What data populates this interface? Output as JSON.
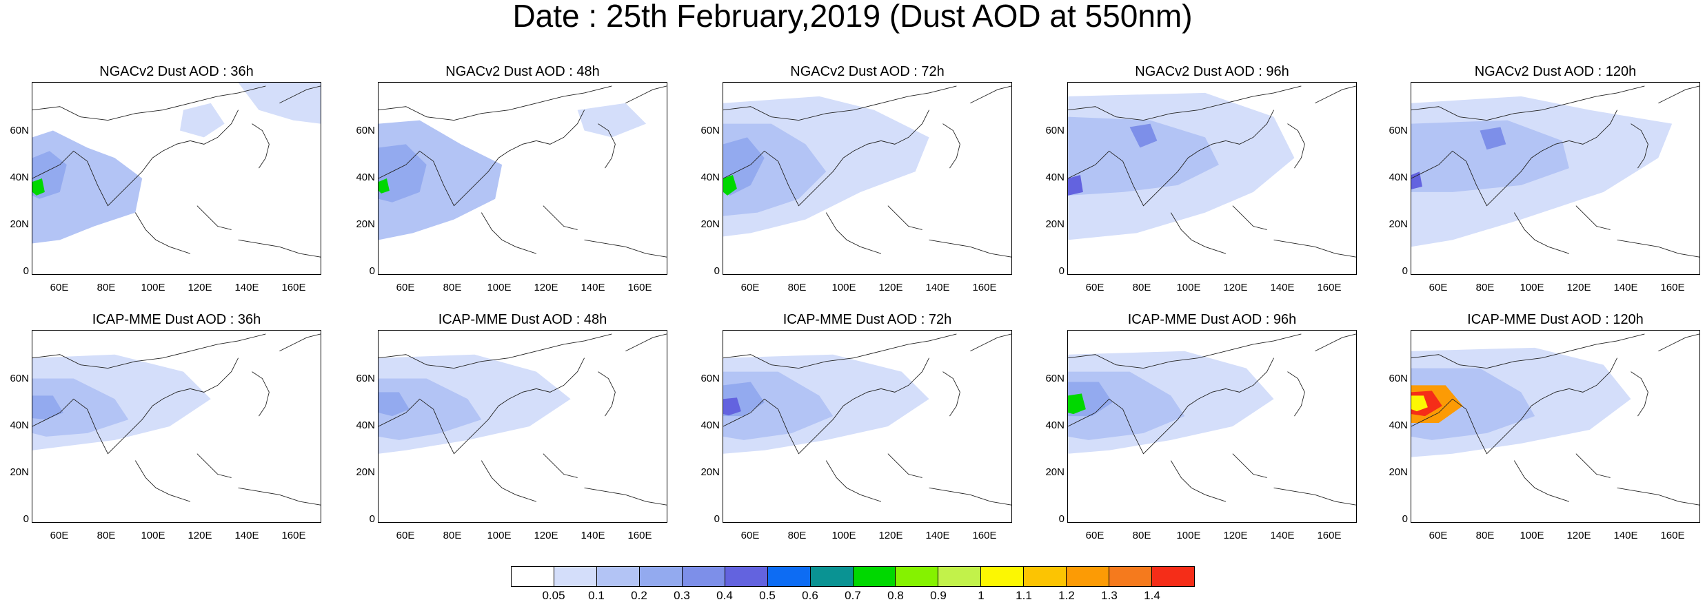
{
  "title": "Date : 25th February,2019 (Dust AOD at 550nm)",
  "panels": [
    {
      "title": "NGACv2 Dust AOD : 36h"
    },
    {
      "title": "NGACv2 Dust AOD : 48h"
    },
    {
      "title": "NGACv2 Dust AOD : 72h"
    },
    {
      "title": "NGACv2 Dust AOD : 96h"
    },
    {
      "title": "NGACv2 Dust AOD : 120h"
    },
    {
      "title": "ICAP-MME Dust AOD : 36h"
    },
    {
      "title": "ICAP-MME Dust AOD : 48h"
    },
    {
      "title": "ICAP-MME Dust AOD : 72h"
    },
    {
      "title": "ICAP-MME Dust AOD : 96h"
    },
    {
      "title": "ICAP-MME Dust AOD : 120h"
    }
  ],
  "lat_ticks": [
    "60N",
    "40N",
    "20N",
    "0"
  ],
  "lon_ticks": [
    "60E",
    "80E",
    "100E",
    "120E",
    "140E",
    "160E"
  ],
  "colorbar": {
    "labels": [
      "0.05",
      "0.1",
      "0.2",
      "0.3",
      "0.4",
      "0.5",
      "0.6",
      "0.7",
      "0.8",
      "0.9",
      "1",
      "1.1",
      "1.2",
      "1.3",
      "1.4"
    ],
    "colors": [
      "#ffffff",
      "#d4defa",
      "#b3c4f5",
      "#93aaef",
      "#7d8fe9",
      "#6363df",
      "#0d6cf3",
      "#0a9393",
      "#00d800",
      "#85f200",
      "#c2f24a",
      "#fcf702",
      "#fcc402",
      "#fc9b05",
      "#f57a1d",
      "#f52d18"
    ]
  }
}
